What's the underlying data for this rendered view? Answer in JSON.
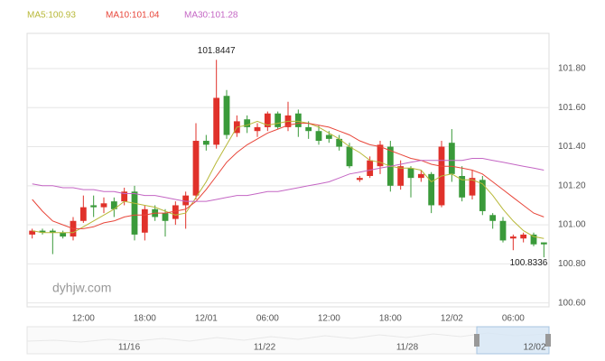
{
  "chart_data": {
    "type": "candlestick",
    "watermark": "dyhjw.com",
    "up_color": "#e0312a",
    "down_color": "#3a9a3a",
    "grid": true,
    "categories": [
      null,
      null,
      null,
      null,
      null,
      "12:00",
      null,
      null,
      null,
      null,
      null,
      "18:00",
      null,
      null,
      null,
      null,
      null,
      "12/01",
      null,
      null,
      null,
      null,
      null,
      "06:00",
      null,
      null,
      null,
      null,
      null,
      "12:00",
      null,
      null,
      null,
      null,
      null,
      "18:00",
      null,
      null,
      null,
      null,
      null,
      "12/02",
      null,
      null,
      null,
      null,
      null,
      "06:00",
      null,
      null,
      null
    ],
    "open": [
      100.95,
      100.97,
      100.97,
      100.96,
      100.94,
      101.02,
      101.1,
      101.09,
      101.12,
      101.12,
      101.17,
      100.96,
      101.08,
      101.06,
      101.03,
      101.1,
      101.15,
      101.43,
      101.41,
      101.66,
      101.47,
      101.54,
      101.48,
      101.5,
      101.57,
      101.5,
      101.57,
      101.5,
      101.48,
      101.46,
      101.44,
      101.4,
      101.23,
      101.25,
      101.3,
      101.4,
      101.2,
      101.29,
      101.24,
      101.26,
      101.1,
      101.42,
      101.25,
      101.15,
      101.23,
      101.05,
      101.02,
      100.93,
      100.93,
      100.95,
      100.91
    ],
    "high": [
      100.98,
      100.98,
      100.98,
      100.97,
      101.04,
      101.15,
      101.15,
      101.14,
      101.14,
      101.19,
      101.2,
      101.1,
      101.1,
      101.08,
      101.12,
      101.17,
      101.52,
      101.46,
      101.8447,
      101.69,
      101.56,
      101.56,
      101.52,
      101.58,
      101.58,
      101.63,
      101.59,
      101.53,
      101.51,
      101.48,
      101.46,
      101.42,
      101.25,
      101.35,
      101.43,
      101.43,
      101.33,
      101.3,
      101.28,
      101.27,
      101.43,
      101.49,
      101.3,
      101.28,
      101.25,
      101.06,
      101.04,
      100.95,
      100.96,
      100.96,
      100.91
    ],
    "low": [
      100.93,
      100.95,
      100.85,
      100.93,
      100.92,
      101.01,
      101.04,
      101.06,
      101.04,
      101.1,
      100.92,
      100.92,
      101.02,
      100.94,
      101.0,
      100.98,
      101.13,
      101.38,
      101.39,
      101.44,
      101.45,
      101.47,
      101.45,
      101.48,
      101.49,
      101.48,
      101.45,
      101.44,
      101.41,
      101.42,
      101.38,
      101.29,
      101.22,
      101.24,
      101.26,
      101.17,
      101.18,
      101.14,
      101.22,
      101.06,
      101.09,
      101.22,
      101.12,
      101.13,
      101.05,
      100.98,
      100.91,
      100.87,
      100.91,
      100.89,
      100.8336
    ],
    "close": [
      100.97,
      100.96,
      100.96,
      100.94,
      101.02,
      101.09,
      101.09,
      101.11,
      101.08,
      101.17,
      100.95,
      101.08,
      101.04,
      101.02,
      101.1,
      101.15,
      101.43,
      101.41,
      101.65,
      101.46,
      101.53,
      101.5,
      101.5,
      101.57,
      101.5,
      101.56,
      101.5,
      101.48,
      101.43,
      101.44,
      101.4,
      101.3,
      101.24,
      101.33,
      101.41,
      101.2,
      101.3,
      101.24,
      101.26,
      101.1,
      101.4,
      101.26,
      101.14,
      101.24,
      101.07,
      101.02,
      100.92,
      100.94,
      100.95,
      100.9,
      100.9
    ],
    "series": [
      {
        "name": "MA5",
        "label": "MA5:100.93",
        "color": "#b8b838",
        "values": [
          100.97,
          100.96,
          100.96,
          100.96,
          100.96,
          100.99,
          101.02,
          101.05,
          101.08,
          101.12,
          101.11,
          101.1,
          101.09,
          101.07,
          101.05,
          101.06,
          101.14,
          101.22,
          101.32,
          101.41,
          101.5,
          101.51,
          101.53,
          101.51,
          101.52,
          101.53,
          101.53,
          101.52,
          101.5,
          101.47,
          101.44,
          101.4,
          101.37,
          101.33,
          101.32,
          101.3,
          101.29,
          101.29,
          101.28,
          101.22,
          101.25,
          101.26,
          101.23,
          101.23,
          101.21,
          101.15,
          101.08,
          101.02,
          100.97,
          100.94,
          100.93
        ]
      },
      {
        "name": "MA10",
        "label": "MA10:101.04",
        "color": "#e8463a",
        "values": [
          101.13,
          101.07,
          101.02,
          101.0,
          100.98,
          100.98,
          100.99,
          101.01,
          101.02,
          101.04,
          101.05,
          101.05,
          101.06,
          101.06,
          101.07,
          101.08,
          101.12,
          101.18,
          101.25,
          101.32,
          101.37,
          101.41,
          101.44,
          101.47,
          101.49,
          101.51,
          101.52,
          101.52,
          101.51,
          101.5,
          101.48,
          101.46,
          101.43,
          101.41,
          101.4,
          101.38,
          101.36,
          101.34,
          101.33,
          101.31,
          101.3,
          101.3,
          101.29,
          101.28,
          101.26,
          101.22,
          101.18,
          101.14,
          101.1,
          101.06,
          101.04
        ]
      },
      {
        "name": "MA30",
        "label": "MA30:101.28",
        "color": "#c466c4",
        "values": [
          101.21,
          101.2,
          101.2,
          101.19,
          101.19,
          101.18,
          101.18,
          101.17,
          101.17,
          101.16,
          101.16,
          101.15,
          101.15,
          101.14,
          101.13,
          101.12,
          101.12,
          101.12,
          101.13,
          101.14,
          101.15,
          101.15,
          101.16,
          101.17,
          101.17,
          101.18,
          101.19,
          101.2,
          101.21,
          101.22,
          101.24,
          101.26,
          101.27,
          101.28,
          101.29,
          101.3,
          101.31,
          101.32,
          101.33,
          101.33,
          101.33,
          101.33,
          101.33,
          101.34,
          101.34,
          101.33,
          101.32,
          101.31,
          101.3,
          101.29,
          101.28
        ]
      }
    ],
    "ylim": [
      100.58,
      101.98
    ],
    "yticks": [
      {
        "value": 100.6,
        "label": "100.60"
      },
      {
        "value": 100.8,
        "label": "100.80"
      },
      {
        "value": 101.0,
        "label": "101.00"
      },
      {
        "value": 101.2,
        "label": "101.20"
      },
      {
        "value": 101.4,
        "label": "101.40"
      },
      {
        "value": 101.6,
        "label": "101.60"
      },
      {
        "value": 101.8,
        "label": "101.80"
      }
    ],
    "navigator": {
      "labels": [
        "11/16",
        "11/22",
        "11/28",
        "12/02"
      ]
    }
  }
}
